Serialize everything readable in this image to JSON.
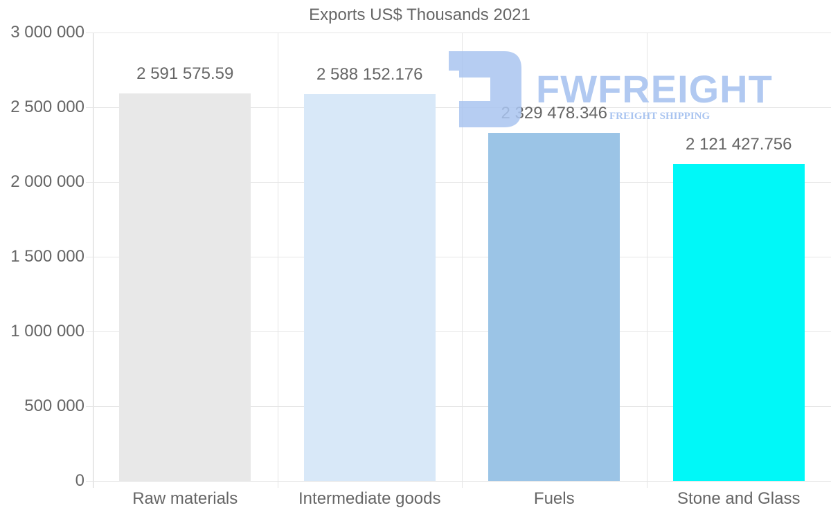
{
  "chart_data": {
    "type": "bar",
    "title": "Exports US$ Thousands 2021",
    "xlabel": "",
    "ylabel": "",
    "ylim": [
      0,
      3000000
    ],
    "grid": true,
    "legend": null,
    "categories": [
      "Raw materials",
      "Intermediate goods",
      "Fuels",
      "Stone and Glass"
    ],
    "values": [
      2591575.59,
      2588152.176,
      2329478.346,
      2121427.756
    ],
    "value_labels": [
      "2 591 575.59",
      "2 588 152.176",
      "2 329 478.346",
      "2 121 427.756"
    ],
    "colors": [
      "#e8e8e8",
      "#d8e8f8",
      "#9bc4e6",
      "#00f8f8"
    ],
    "y_ticks": [
      {
        "value": 3000000,
        "label": "3 000 000"
      },
      {
        "value": 2500000,
        "label": "2 500 000"
      },
      {
        "value": 2000000,
        "label": "2 000 000"
      },
      {
        "value": 1500000,
        "label": "1 500 000"
      },
      {
        "value": 1000000,
        "label": "1 000 000"
      },
      {
        "value": 500000,
        "label": "500 000"
      },
      {
        "value": 0,
        "label": "0"
      }
    ]
  },
  "watermark": {
    "brand": "FWFREIGHT",
    "tagline": "FREIGHT SHIPPING",
    "color": "#a9c4f0"
  }
}
